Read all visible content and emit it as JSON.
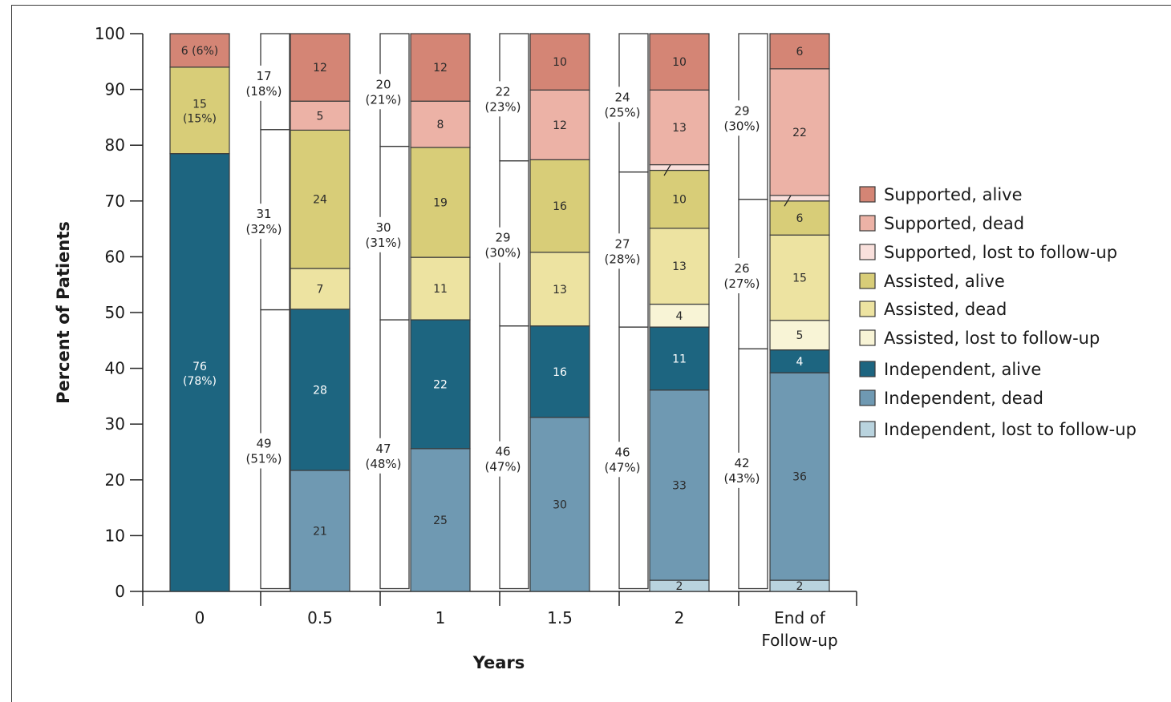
{
  "chart_data": {
    "type": "bar",
    "stacked": true,
    "xlabel": "Years",
    "ylabel": "Percent of Patients",
    "ylim": [
      0,
      100
    ],
    "yticks": [
      0,
      10,
      20,
      30,
      40,
      50,
      60,
      70,
      80,
      90,
      100
    ],
    "categories": [
      {
        "label": "0",
        "label2": ""
      },
      {
        "label": "0.5",
        "label2": ""
      },
      {
        "label": "1",
        "label2": ""
      },
      {
        "label": "1.5",
        "label2": ""
      },
      {
        "label": "2",
        "label2": ""
      },
      {
        "label": "End of",
        "label2": "Follow-up"
      }
    ],
    "series": [
      {
        "name": "Independent, lost to follow-up",
        "color": "#b9d3de"
      },
      {
        "name": "Independent, dead",
        "color": "#6f99b2"
      },
      {
        "name": "Independent, alive",
        "color": "#1d6580"
      },
      {
        "name": "Assisted, lost to follow-up",
        "color": "#f8f4d6"
      },
      {
        "name": "Assisted, dead",
        "color": "#ede3a1"
      },
      {
        "name": "Assisted, alive",
        "color": "#d8cd78"
      },
      {
        "name": "Supported, lost to follow-up",
        "color": "#f9e0dc"
      },
      {
        "name": "Supported, dead",
        "color": "#ecb2a6"
      },
      {
        "name": "Supported, alive",
        "color": "#d48575"
      }
    ],
    "legend_order": [
      8,
      7,
      6,
      5,
      4,
      3,
      2,
      1,
      0
    ],
    "legend_placement": "right",
    "stacks": [
      {
        "category": "0",
        "segments": [
          {
            "series": 2,
            "from": 0,
            "to": 78.5,
            "label": "76",
            "label2": "(78%)"
          },
          {
            "series": 5,
            "from": 78.5,
            "to": 94,
            "label": "15",
            "label2": "(15%)"
          },
          {
            "series": 8,
            "from": 94,
            "to": 100,
            "label": "6 (6%)",
            "label2": ""
          }
        ]
      },
      {
        "category": "0.5",
        "segments": [
          {
            "series": 0,
            "from": 0,
            "to": 0,
            "label": "",
            "label2": ""
          },
          {
            "series": 1,
            "from": 0,
            "to": 21.7,
            "label": "21",
            "label2": ""
          },
          {
            "series": 2,
            "from": 21.7,
            "to": 50.6,
            "label": "28",
            "label2": ""
          },
          {
            "series": 4,
            "from": 50.6,
            "to": 57.9,
            "label": "7",
            "label2": ""
          },
          {
            "series": 5,
            "from": 57.9,
            "to": 82.7,
            "label": "24",
            "label2": ""
          },
          {
            "series": 7,
            "from": 82.7,
            "to": 87.9,
            "label": "5",
            "label2": ""
          },
          {
            "series": 8,
            "from": 87.9,
            "to": 100,
            "label": "12",
            "label2": ""
          }
        ]
      },
      {
        "category": "1",
        "segments": [
          {
            "series": 1,
            "from": 0,
            "to": 25.6,
            "label": "25",
            "label2": ""
          },
          {
            "series": 2,
            "from": 25.6,
            "to": 48.7,
            "label": "22",
            "label2": ""
          },
          {
            "series": 4,
            "from": 48.7,
            "to": 59.9,
            "label": "11",
            "label2": ""
          },
          {
            "series": 5,
            "from": 59.9,
            "to": 79.6,
            "label": "19",
            "label2": ""
          },
          {
            "series": 7,
            "from": 79.6,
            "to": 87.9,
            "label": "8",
            "label2": ""
          },
          {
            "series": 8,
            "from": 87.9,
            "to": 100,
            "label": "12",
            "label2": ""
          }
        ]
      },
      {
        "category": "1.5",
        "segments": [
          {
            "series": 1,
            "from": 0,
            "to": 31.2,
            "label": "30",
            "label2": ""
          },
          {
            "series": 2,
            "from": 31.2,
            "to": 47.6,
            "label": "16",
            "label2": ""
          },
          {
            "series": 4,
            "from": 47.6,
            "to": 60.8,
            "label": "13",
            "label2": ""
          },
          {
            "series": 5,
            "from": 60.8,
            "to": 77.4,
            "label": "16",
            "label2": ""
          },
          {
            "series": 7,
            "from": 77.4,
            "to": 89.9,
            "label": "12",
            "label2": ""
          },
          {
            "series": 8,
            "from": 89.9,
            "to": 100,
            "label": "10",
            "label2": ""
          }
        ]
      },
      {
        "category": "2",
        "segments": [
          {
            "series": 0,
            "from": 0,
            "to": 2.0,
            "label": "2",
            "label2": ""
          },
          {
            "series": 1,
            "from": 2.0,
            "to": 36.1,
            "label": "33",
            "label2": ""
          },
          {
            "series": 2,
            "from": 36.1,
            "to": 47.4,
            "label": "11",
            "label2": ""
          },
          {
            "series": 3,
            "from": 47.4,
            "to": 51.5,
            "label": "4",
            "label2": ""
          },
          {
            "series": 4,
            "from": 51.5,
            "to": 65.1,
            "label": "13",
            "label2": ""
          },
          {
            "series": 5,
            "from": 65.1,
            "to": 75.5,
            "label": "10",
            "label2": ""
          },
          {
            "series": 6,
            "from": 75.5,
            "to": 76.5,
            "label": "1",
            "label2": ""
          },
          {
            "series": 7,
            "from": 76.5,
            "to": 89.9,
            "label": "13",
            "label2": ""
          },
          {
            "series": 8,
            "from": 89.9,
            "to": 100,
            "label": "10",
            "label2": ""
          }
        ]
      },
      {
        "category": "End of Follow-up",
        "segments": [
          {
            "series": 0,
            "from": 0,
            "to": 2.0,
            "label": "2",
            "label2": ""
          },
          {
            "series": 1,
            "from": 2.0,
            "to": 39.2,
            "label": "36",
            "label2": ""
          },
          {
            "series": 2,
            "from": 39.2,
            "to": 43.3,
            "label": "4",
            "label2": ""
          },
          {
            "series": 3,
            "from": 43.3,
            "to": 48.6,
            "label": "5",
            "label2": ""
          },
          {
            "series": 4,
            "from": 48.6,
            "to": 63.9,
            "label": "15",
            "label2": ""
          },
          {
            "series": 5,
            "from": 63.9,
            "to": 70.0,
            "label": "6",
            "label2": ""
          },
          {
            "series": 6,
            "from": 70.0,
            "to": 71.0,
            "label": "1",
            "label2": ""
          },
          {
            "series": 7,
            "from": 71.0,
            "to": 93.7,
            "label": "22",
            "label2": ""
          },
          {
            "series": 8,
            "from": 93.7,
            "to": 100,
            "label": "6",
            "label2": ""
          }
        ]
      }
    ],
    "lost_columns": [
      {
        "after_category": "0",
        "groups": [
          {
            "from": 0.5,
            "to": 50.5,
            "label": "49",
            "label2": "(51%)"
          },
          {
            "from": 50.5,
            "to": 82.8,
            "label": "31",
            "label2": "(32%)"
          },
          {
            "from": 82.8,
            "to": 100,
            "label": "17",
            "label2": "(18%)"
          }
        ]
      },
      {
        "after_category": "0.5",
        "groups": [
          {
            "from": 0.5,
            "to": 48.7,
            "label": "47",
            "label2": "(48%)"
          },
          {
            "from": 48.7,
            "to": 79.8,
            "label": "30",
            "label2": "(31%)"
          },
          {
            "from": 79.8,
            "to": 100,
            "label": "20",
            "label2": "(21%)"
          }
        ]
      },
      {
        "after_category": "1",
        "groups": [
          {
            "from": 0.5,
            "to": 47.6,
            "label": "46",
            "label2": "(47%)"
          },
          {
            "from": 47.6,
            "to": 77.2,
            "label": "29",
            "label2": "(30%)"
          },
          {
            "from": 77.2,
            "to": 100,
            "label": "22",
            "label2": "(23%)"
          }
        ]
      },
      {
        "after_category": "1.5",
        "groups": [
          {
            "from": 0.5,
            "to": 47.4,
            "label": "46",
            "label2": "(47%)"
          },
          {
            "from": 47.4,
            "to": 75.2,
            "label": "27",
            "label2": "(28%)"
          },
          {
            "from": 75.2,
            "to": 100,
            "label": "24",
            "label2": "(25%)"
          }
        ]
      },
      {
        "after_category": "2",
        "groups": [
          {
            "from": 0.5,
            "to": 43.5,
            "label": "42",
            "label2": "(43%)"
          },
          {
            "from": 43.5,
            "to": 70.3,
            "label": "26",
            "label2": "(27%)"
          },
          {
            "from": 70.3,
            "to": 100,
            "label": "29",
            "label2": "(30%)"
          }
        ]
      }
    ]
  }
}
